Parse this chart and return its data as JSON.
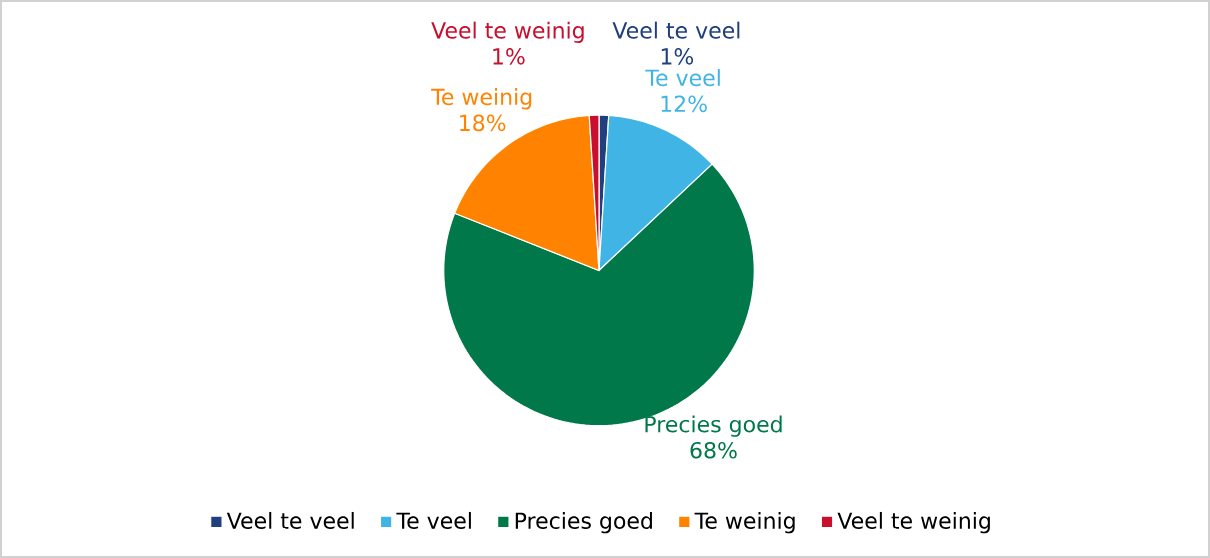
{
  "chart_data": {
    "type": "pie",
    "categories": [
      "Veel te veel",
      "Te veel",
      "Precies goed",
      "Te weinig",
      "Veel te weinig"
    ],
    "values": [
      1,
      12,
      68,
      18,
      1
    ],
    "value_labels": [
      "1%",
      "12%",
      "68%",
      "18%",
      "1%"
    ],
    "colors": [
      "#203f7f",
      "#41b4e6",
      "#00784a",
      "#ff8200",
      "#c8102e"
    ],
    "legend": "bottom"
  }
}
